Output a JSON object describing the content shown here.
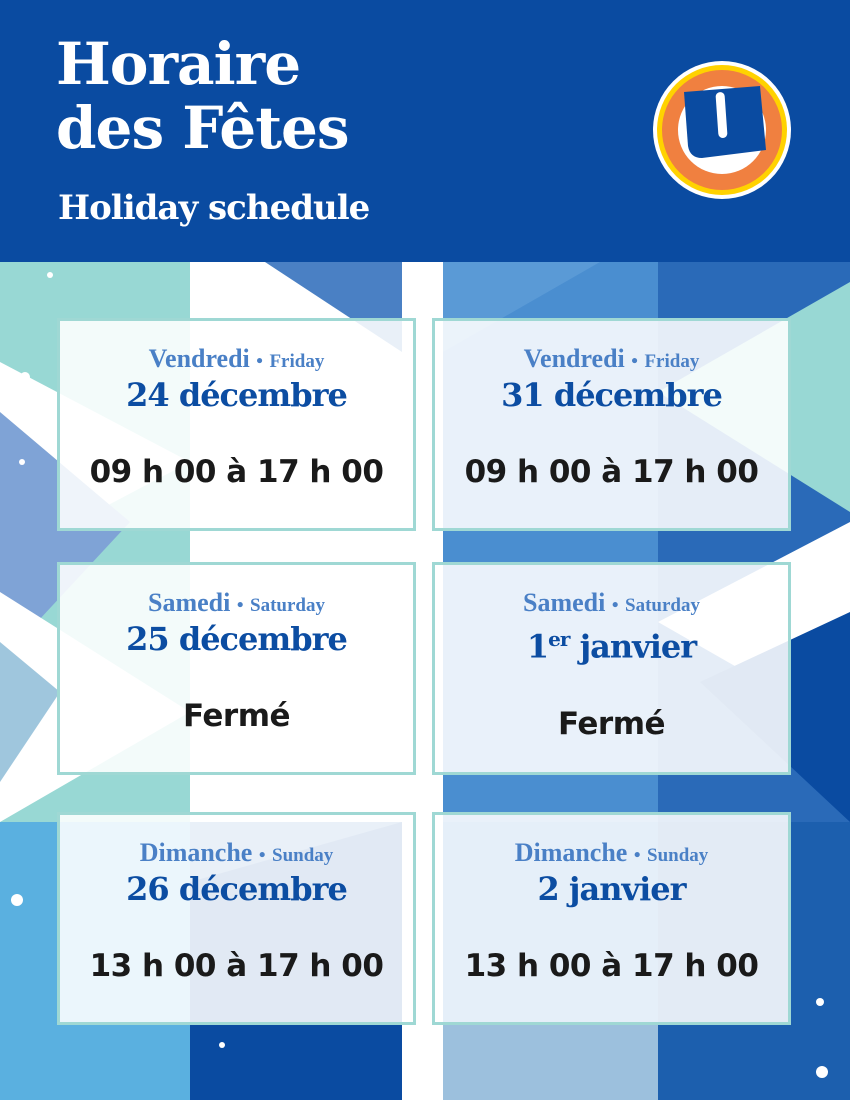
{
  "header": {
    "title_line1": "Horaire",
    "title_line2": "des Fêtes",
    "subtitle": "Holiday schedule",
    "logo": "U-logo",
    "colors": {
      "brand_blue": "#0a4ba1",
      "logo_orange": "#f08040",
      "logo_yellow": "#ffd200",
      "card_border": "#9fd8d4"
    }
  },
  "cards": [
    {
      "day_fr": "Vendredi",
      "sep": "•",
      "day_en": "Friday",
      "date": "24 décembre",
      "date_sup": "",
      "date_rest": "",
      "hours": "09 h 00 à 17 h 00"
    },
    {
      "day_fr": "Vendredi",
      "sep": "•",
      "day_en": "Friday",
      "date": "31 décembre",
      "date_sup": "",
      "date_rest": "",
      "hours": "09 h 00 à 17 h 00"
    },
    {
      "day_fr": "Samedi",
      "sep": "•",
      "day_en": "Saturday",
      "date": "25 décembre",
      "date_sup": "",
      "date_rest": "",
      "hours": "Fermé"
    },
    {
      "day_fr": "Samedi",
      "sep": "•",
      "day_en": "Saturday",
      "date": "1",
      "date_sup": "er",
      "date_rest": " janvier",
      "hours": "Fermé"
    },
    {
      "day_fr": "Dimanche",
      "sep": "•",
      "day_en": "Sunday",
      "date": "26 décembre",
      "date_sup": "",
      "date_rest": "",
      "hours": "13 h 00 à 17 h 00"
    },
    {
      "day_fr": "Dimanche",
      "sep": "•",
      "day_en": "Sunday",
      "date": "2 janvier",
      "date_sup": "",
      "date_rest": "",
      "hours": "13 h 00 à 17 h 00"
    }
  ]
}
